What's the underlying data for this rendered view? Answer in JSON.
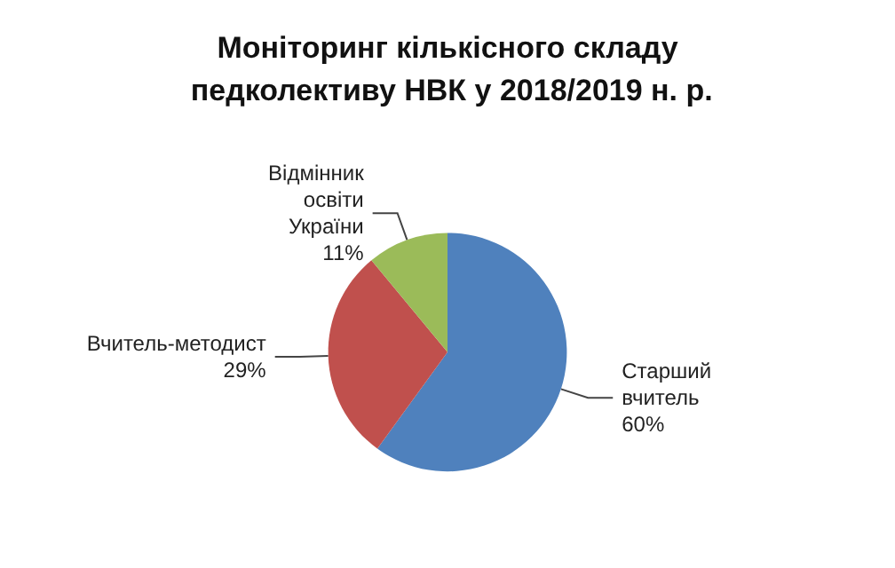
{
  "chart_data": {
    "type": "pie",
    "title": "Моніторинг кількісного складу педколективу НВК у 2018/2019 н. р.",
    "categories": [
      "Старший вчитель",
      "Вчитель-методист",
      "Відмінник освіти України"
    ],
    "values": [
      60,
      29,
      11
    ],
    "colors": [
      "#4f81bd",
      "#c0504d",
      "#9bbb59"
    ],
    "value_labels": [
      "60%",
      "29%",
      "11%"
    ],
    "legend": false
  }
}
